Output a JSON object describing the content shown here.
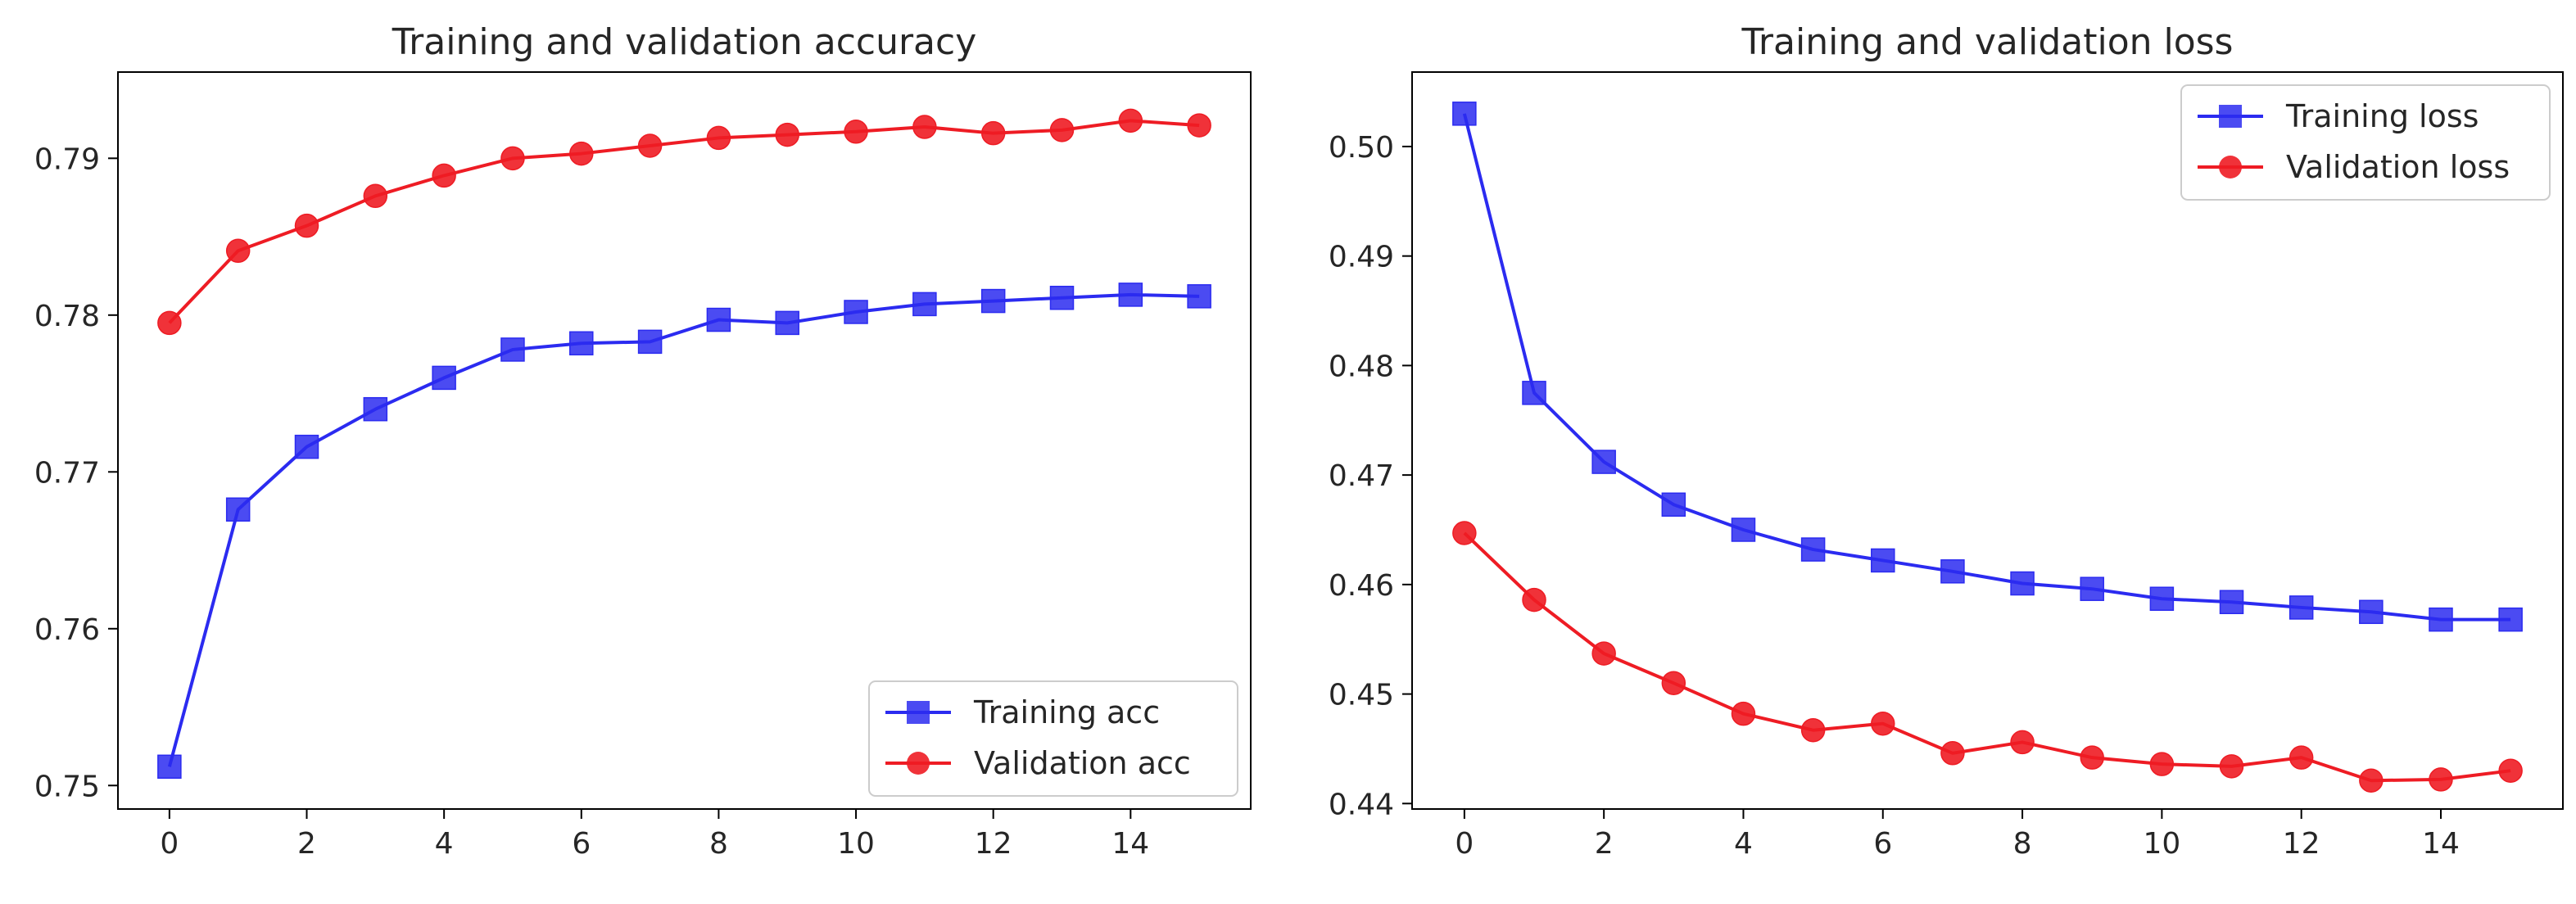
{
  "colors": {
    "training": "#2b2bf0",
    "validation": "#ee1c24",
    "axis": "#000000",
    "text": "#262626"
  },
  "chart_data": [
    {
      "type": "line",
      "title": "Training and validation accuracy",
      "xlabel": "",
      "ylabel": "",
      "xlim": [
        -0.75,
        15.75
      ],
      "ylim": [
        0.7485,
        0.7955
      ],
      "xticks": [
        0,
        2,
        4,
        6,
        8,
        10,
        12,
        14
      ],
      "xtick_labels": [
        "0",
        "2",
        "4",
        "6",
        "8",
        "10",
        "12",
        "14"
      ],
      "yticks": [
        0.75,
        0.76,
        0.77,
        0.78,
        0.79
      ],
      "ytick_labels": [
        "0.75",
        "0.76",
        "0.77",
        "0.78",
        "0.79"
      ],
      "legend_position": "lower-right",
      "x": [
        0,
        1,
        2,
        3,
        4,
        5,
        6,
        7,
        8,
        9,
        10,
        11,
        12,
        13,
        14,
        15
      ],
      "series": [
        {
          "name": "Training acc",
          "color_key": "training",
          "marker": "square",
          "values": [
            0.7512,
            0.7676,
            0.7716,
            0.774,
            0.776,
            0.7778,
            0.7782,
            0.7783,
            0.7797,
            0.7795,
            0.7802,
            0.7807,
            0.7809,
            0.7811,
            0.7813,
            0.7812
          ]
        },
        {
          "name": "Validation acc",
          "color_key": "validation",
          "marker": "circle",
          "values": [
            0.7795,
            0.7841,
            0.7857,
            0.7876,
            0.7889,
            0.79,
            0.7903,
            0.7908,
            0.7913,
            0.7915,
            0.7917,
            0.792,
            0.7916,
            0.7918,
            0.7924,
            0.7921
          ]
        }
      ]
    },
    {
      "type": "line",
      "title": "Training and validation loss",
      "xlabel": "",
      "ylabel": "",
      "xlim": [
        -0.75,
        15.75
      ],
      "ylim": [
        0.4395,
        0.5068
      ],
      "xticks": [
        0,
        2,
        4,
        6,
        8,
        10,
        12,
        14
      ],
      "xtick_labels": [
        "0",
        "2",
        "4",
        "6",
        "8",
        "10",
        "12",
        "14"
      ],
      "yticks": [
        0.44,
        0.45,
        0.46,
        0.47,
        0.48,
        0.49,
        0.5
      ],
      "ytick_labels": [
        "0.44",
        "0.45",
        "0.46",
        "0.47",
        "0.48",
        "0.49",
        "0.50"
      ],
      "legend_position": "upper-right",
      "x": [
        0,
        1,
        2,
        3,
        4,
        5,
        6,
        7,
        8,
        9,
        10,
        11,
        12,
        13,
        14,
        15
      ],
      "series": [
        {
          "name": "Training loss",
          "color_key": "training",
          "marker": "square",
          "values": [
            0.503,
            0.4775,
            0.4712,
            0.4673,
            0.465,
            0.4632,
            0.4622,
            0.4612,
            0.4601,
            0.4596,
            0.4587,
            0.4584,
            0.4579,
            0.4575,
            0.4568,
            0.4568
          ]
        },
        {
          "name": "Validation loss",
          "color_key": "validation",
          "marker": "circle",
          "values": [
            0.4647,
            0.4586,
            0.4537,
            0.451,
            0.4482,
            0.4467,
            0.4473,
            0.4446,
            0.4456,
            0.4442,
            0.4436,
            0.4434,
            0.4442,
            0.4421,
            0.4422,
            0.443
          ]
        }
      ]
    }
  ]
}
